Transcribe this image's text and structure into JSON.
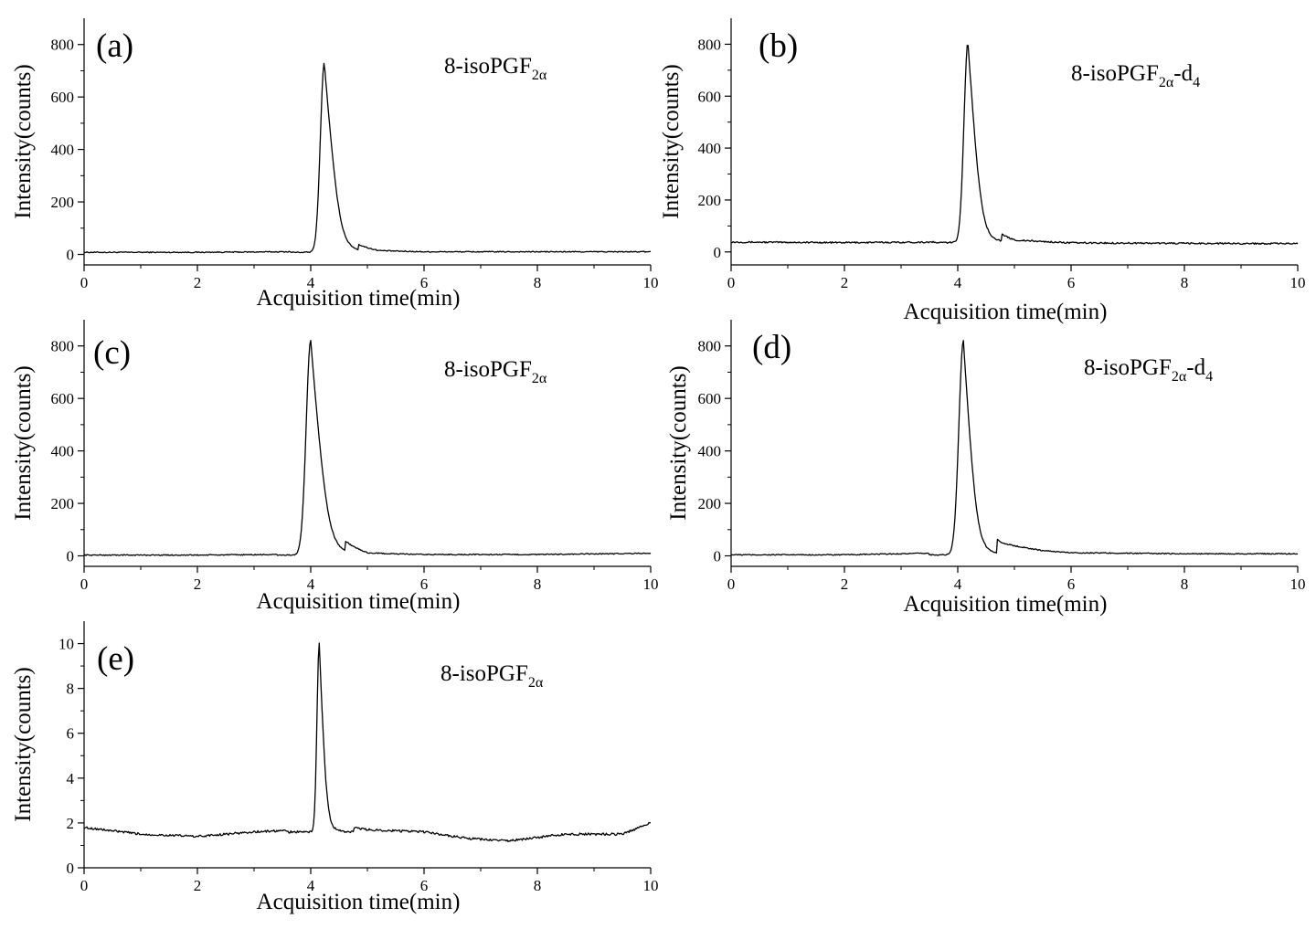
{
  "chart_data": [
    {
      "type": "line",
      "panel": "(a)",
      "annotation": {
        "base": "8-isoPGF",
        "sub": "2α",
        "suffix": "",
        "suffix_sub": ""
      },
      "xlabel": "Acquisition time(min)",
      "ylabel": "Intensity(counts)",
      "xlim": [
        0,
        10
      ],
      "ylim": [
        -40,
        900
      ],
      "xticks": [
        0,
        2,
        4,
        6,
        8,
        10
      ],
      "yticks": [
        0,
        200,
        400,
        600,
        800
      ],
      "series": [
        {
          "color": "#000000",
          "baseline": 8,
          "peak_x": 4.24,
          "peak_y": 730,
          "rise_width": 0.07,
          "tail_width": 0.16,
          "noise": 2,
          "x": [
            0,
            2,
            3.6,
            4.0,
            4.1,
            4.24,
            4.35,
            4.5,
            4.8,
            5.2,
            6,
            8,
            10
          ],
          "y": [
            8,
            8,
            10,
            25,
            160,
            730,
            400,
            90,
            30,
            14,
            10,
            10,
            10
          ]
        }
      ],
      "grid": false
    },
    {
      "type": "line",
      "panel": "(b)",
      "annotation": {
        "base": "8-isoPGF",
        "sub": "2α",
        "suffix": "-d",
        "suffix_sub": "4"
      },
      "xlabel": "Acquisition time(min)",
      "ylabel": "Intensity(counts)",
      "xlim": [
        0,
        10
      ],
      "ylim": [
        -50,
        900
      ],
      "xticks": [
        0,
        2,
        4,
        6,
        8,
        10
      ],
      "yticks": [
        0,
        200,
        400,
        600,
        800
      ],
      "series": [
        {
          "color": "#000000",
          "baseline": 36,
          "peak_x": 4.18,
          "peak_y": 808,
          "rise_width": 0.07,
          "tail_width": 0.14,
          "noise": 3,
          "x": [
            0,
            2,
            3.8,
            4.0,
            4.1,
            4.18,
            4.3,
            4.5,
            5.0,
            6,
            8,
            10
          ],
          "y": [
            38,
            36,
            38,
            55,
            300,
            808,
            450,
            80,
            45,
            35,
            33,
            32
          ]
        }
      ],
      "grid": false
    },
    {
      "type": "line",
      "panel": "(c)",
      "annotation": {
        "base": "8-isoPGF",
        "sub": "2α",
        "suffix": "",
        "suffix_sub": ""
      },
      "xlabel": "Acquisition time(min)",
      "ylabel": "Intensity(counts)",
      "xlim": [
        0,
        10
      ],
      "ylim": [
        -40,
        900
      ],
      "xticks": [
        0,
        2,
        4,
        6,
        8,
        10
      ],
      "yticks": [
        0,
        200,
        400,
        600,
        800
      ],
      "series": [
        {
          "color": "#000000",
          "baseline": 3,
          "peak_x": 4.0,
          "peak_y": 820,
          "rise_width": 0.08,
          "tail_width": 0.18,
          "noise": 2,
          "x": [
            0,
            2,
            3.5,
            3.8,
            3.9,
            4.0,
            4.1,
            4.3,
            4.6,
            5.0,
            6,
            8,
            10
          ],
          "y": [
            3,
            3,
            5,
            25,
            250,
            820,
            600,
            180,
            40,
            10,
            5,
            5,
            10
          ]
        }
      ],
      "grid": false
    },
    {
      "type": "line",
      "panel": "(d)",
      "annotation": {
        "base": "8-isoPGF",
        "sub": "2α",
        "suffix": "-d",
        "suffix_sub": "4"
      },
      "xlabel": "Acquisition time(min)",
      "ylabel": "Intensity(counts)",
      "xlim": [
        0,
        10
      ],
      "ylim": [
        -40,
        900
      ],
      "xticks": [
        0,
        2,
        4,
        6,
        8,
        10
      ],
      "yticks": [
        0,
        200,
        400,
        600,
        800
      ],
      "series": [
        {
          "color": "#000000",
          "baseline": 4,
          "peak_x": 4.1,
          "peak_y": 820,
          "rise_width": 0.08,
          "tail_width": 0.14,
          "noise": 2,
          "x": [
            0,
            2,
            3.5,
            3.9,
            4.0,
            4.1,
            4.2,
            4.4,
            4.8,
            5.5,
            6,
            8,
            10
          ],
          "y": [
            4,
            4,
            10,
            40,
            300,
            820,
            500,
            90,
            45,
            20,
            12,
            8,
            8
          ]
        }
      ],
      "grid": false
    },
    {
      "type": "line",
      "panel": "(e)",
      "annotation": {
        "base": "8-isoPGF",
        "sub": "2α",
        "suffix": "",
        "suffix_sub": ""
      },
      "xlabel": "Acquisition time(min)",
      "ylabel": "Intensity(counts)",
      "xlim": [
        0,
        10
      ],
      "ylim": [
        0,
        11
      ],
      "xticks": [
        0,
        2,
        4,
        6,
        8,
        10
      ],
      "yticks": [
        0,
        2,
        4,
        6,
        8,
        10
      ],
      "series": [
        {
          "color": "#000000",
          "baseline": 1.6,
          "peak_x": 4.15,
          "peak_y": 10,
          "rise_width": 0.04,
          "tail_width": 0.08,
          "noise": 0.05,
          "x": [
            0,
            1,
            2,
            3,
            3.9,
            4.05,
            4.15,
            4.25,
            4.4,
            5,
            6,
            6.8,
            7.5,
            8.5,
            9.5,
            10
          ],
          "y": [
            1.8,
            1.5,
            1.4,
            1.6,
            1.7,
            3.0,
            10,
            4.0,
            1.9,
            1.7,
            1.6,
            1.3,
            1.2,
            1.5,
            1.5,
            2.0
          ]
        }
      ],
      "grid": false
    }
  ]
}
